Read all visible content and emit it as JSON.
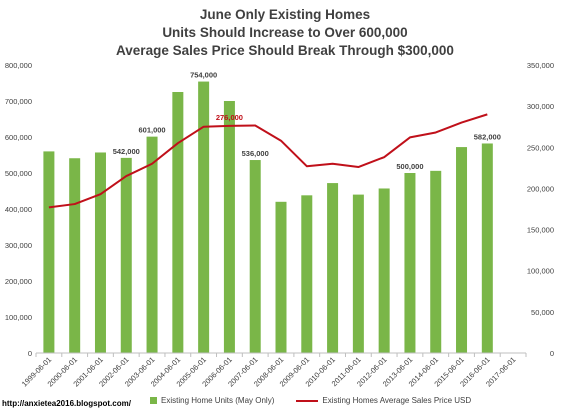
{
  "chart_data": {
    "type": "bar",
    "title": [
      "June Only Existing Homes",
      "Units Should Increase to Over 600,000",
      "Average Sales Price Should Break Through $300,000"
    ],
    "categories": [
      "1999-06-01",
      "2000-06-01",
      "2001-06-01",
      "2002-06-01",
      "2003-06-01",
      "2004-06-01",
      "2005-06-01",
      "2006-06-01",
      "2007-06-01",
      "2008-06-01",
      "2009-06-01",
      "2010-06-01",
      "2011-06-01",
      "2012-06-01",
      "2013-06-01",
      "2014-06-01",
      "2015-06-01",
      "2016-06-01",
      "2017-06-01"
    ],
    "series": [
      {
        "name": "Existing Home Units (May Only)",
        "type": "bar",
        "axis": "left",
        "color": "#7ab648",
        "values": [
          560000,
          541000,
          557000,
          542000,
          601000,
          725000,
          754000,
          700000,
          536000,
          420000,
          438000,
          472000,
          440000,
          457000,
          500000,
          506000,
          572000,
          582000,
          null
        ]
      },
      {
        "name": "Existing Homes Average Sales Price USD",
        "type": "line",
        "axis": "right",
        "color": "#c0101a",
        "values": [
          177000,
          181000,
          193000,
          215000,
          230000,
          255000,
          275000,
          276000,
          276500,
          258000,
          227000,
          230000,
          226000,
          238000,
          262000,
          268000,
          280000,
          290000,
          null
        ]
      }
    ],
    "bar_labels": [
      {
        "index": 3,
        "text": "542,000"
      },
      {
        "index": 4,
        "text": "601,000"
      },
      {
        "index": 6,
        "text": "754,000"
      },
      {
        "index": 8,
        "text": "536,000"
      },
      {
        "index": 14,
        "text": "500,000"
      },
      {
        "index": 17,
        "text": "582,000"
      }
    ],
    "line_labels": [
      {
        "index": 7,
        "text": "276,000"
      }
    ],
    "y_left": {
      "ylim": [
        0,
        800000
      ],
      "ticks": [
        0,
        100000,
        200000,
        300000,
        400000,
        500000,
        600000,
        700000,
        800000
      ],
      "tick_labels": [
        "0",
        "100,000",
        "200,000",
        "300,000",
        "400,000",
        "500,000",
        "600,000",
        "700,000",
        "800,000"
      ]
    },
    "y_right": {
      "ylim": [
        0,
        350000
      ],
      "ticks": [
        0,
        50000,
        100000,
        150000,
        200000,
        250000,
        300000,
        350000
      ],
      "tick_labels": [
        "0",
        "50,000",
        "100,000",
        "150,000",
        "200,000",
        "250,000",
        "300,000",
        "350,000"
      ]
    },
    "grid": false,
    "legend": "bottom"
  },
  "credit": "http://anxietea2016.blogspot.com/"
}
